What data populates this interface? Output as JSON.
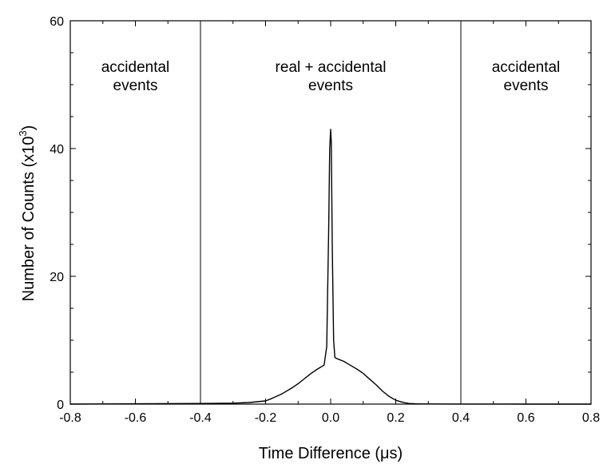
{
  "chart_data": {
    "type": "line",
    "title": "",
    "xlabel": "Time Difference (μs)",
    "ylabel": {
      "prefix": "Number of Counts (x10",
      "exponent": "3",
      "suffix": ")"
    },
    "xlim": [
      -0.8,
      0.8
    ],
    "ylim": [
      0,
      60
    ],
    "x_ticks": [
      "-0.8",
      "-0.6",
      "-0.4",
      "-0.2",
      "0.0",
      "0.2",
      "0.4",
      "0.6",
      "0.8"
    ],
    "y_ticks": [
      "0",
      "20",
      "40",
      "60"
    ],
    "grid": false,
    "region_dividers_x": [
      -0.4,
      0.4
    ],
    "region_labels": [
      {
        "lines": [
          "accidental",
          "events"
        ],
        "x_center": -0.6
      },
      {
        "lines": [
          "real + accidental",
          "events"
        ],
        "x_center": 0.0
      },
      {
        "lines": [
          "accidental",
          "events"
        ],
        "x_center": 0.6
      }
    ],
    "series": [
      {
        "x": [
          -0.8,
          -0.6,
          -0.4,
          -0.3,
          -0.25,
          -0.2,
          -0.18,
          -0.15,
          -0.12,
          -0.1,
          -0.08,
          -0.06,
          -0.04,
          -0.02,
          -0.012,
          -0.006,
          -0.003,
          0.0,
          0.002,
          0.005,
          0.009,
          0.013,
          0.02,
          0.04,
          0.06,
          0.08,
          0.1,
          0.12,
          0.14,
          0.16,
          0.18,
          0.2,
          0.22,
          0.24,
          0.26,
          0.28,
          0.3,
          0.4,
          0.6,
          0.8
        ],
        "y": [
          0.0,
          0.05,
          0.1,
          0.15,
          0.25,
          0.5,
          0.9,
          1.6,
          2.5,
          3.2,
          4.0,
          4.8,
          5.5,
          6.1,
          9.0,
          28.0,
          40.0,
          43.0,
          41.0,
          25.0,
          10.0,
          7.3,
          7.1,
          6.7,
          6.1,
          5.5,
          4.8,
          3.9,
          3.0,
          2.0,
          1.2,
          0.6,
          0.3,
          0.1,
          0.05,
          0.03,
          0.02,
          0.01,
          0.0,
          0.0
        ]
      }
    ]
  }
}
